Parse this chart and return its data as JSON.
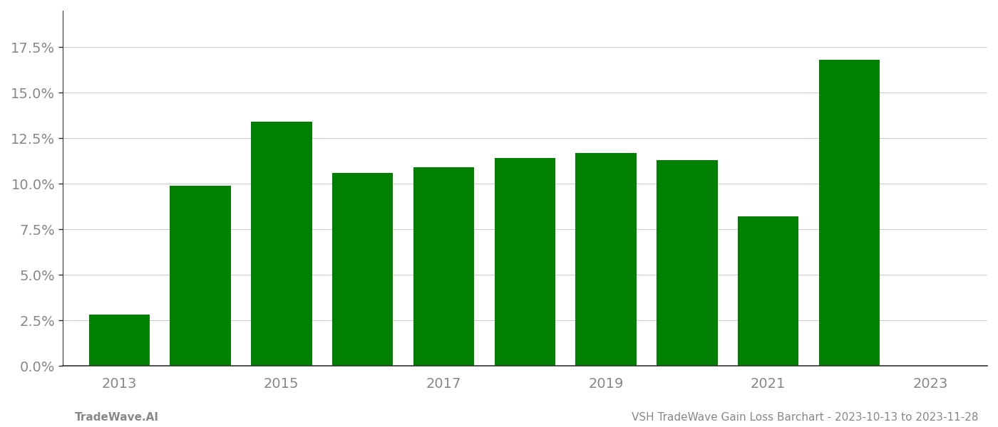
{
  "years": [
    2013,
    2014,
    2015,
    2016,
    2017,
    2018,
    2019,
    2020,
    2021,
    2022
  ],
  "values": [
    0.028,
    0.099,
    0.134,
    0.106,
    0.109,
    0.114,
    0.117,
    0.113,
    0.082,
    0.168
  ],
  "bar_color": "#008000",
  "background_color": "#ffffff",
  "yticks": [
    0.0,
    0.025,
    0.05,
    0.075,
    0.1,
    0.125,
    0.15,
    0.175
  ],
  "ylim": [
    0,
    0.195
  ],
  "xlim": [
    2012.3,
    2023.7
  ],
  "grid_color": "#cccccc",
  "tick_color": "#888888",
  "spine_color": "#333333",
  "footer_left": "TradeWave.AI",
  "footer_right": "VSH TradeWave Gain Loss Barchart - 2023-10-13 to 2023-11-28",
  "footer_fontsize": 11,
  "tick_fontsize": 14,
  "bar_width": 0.75
}
